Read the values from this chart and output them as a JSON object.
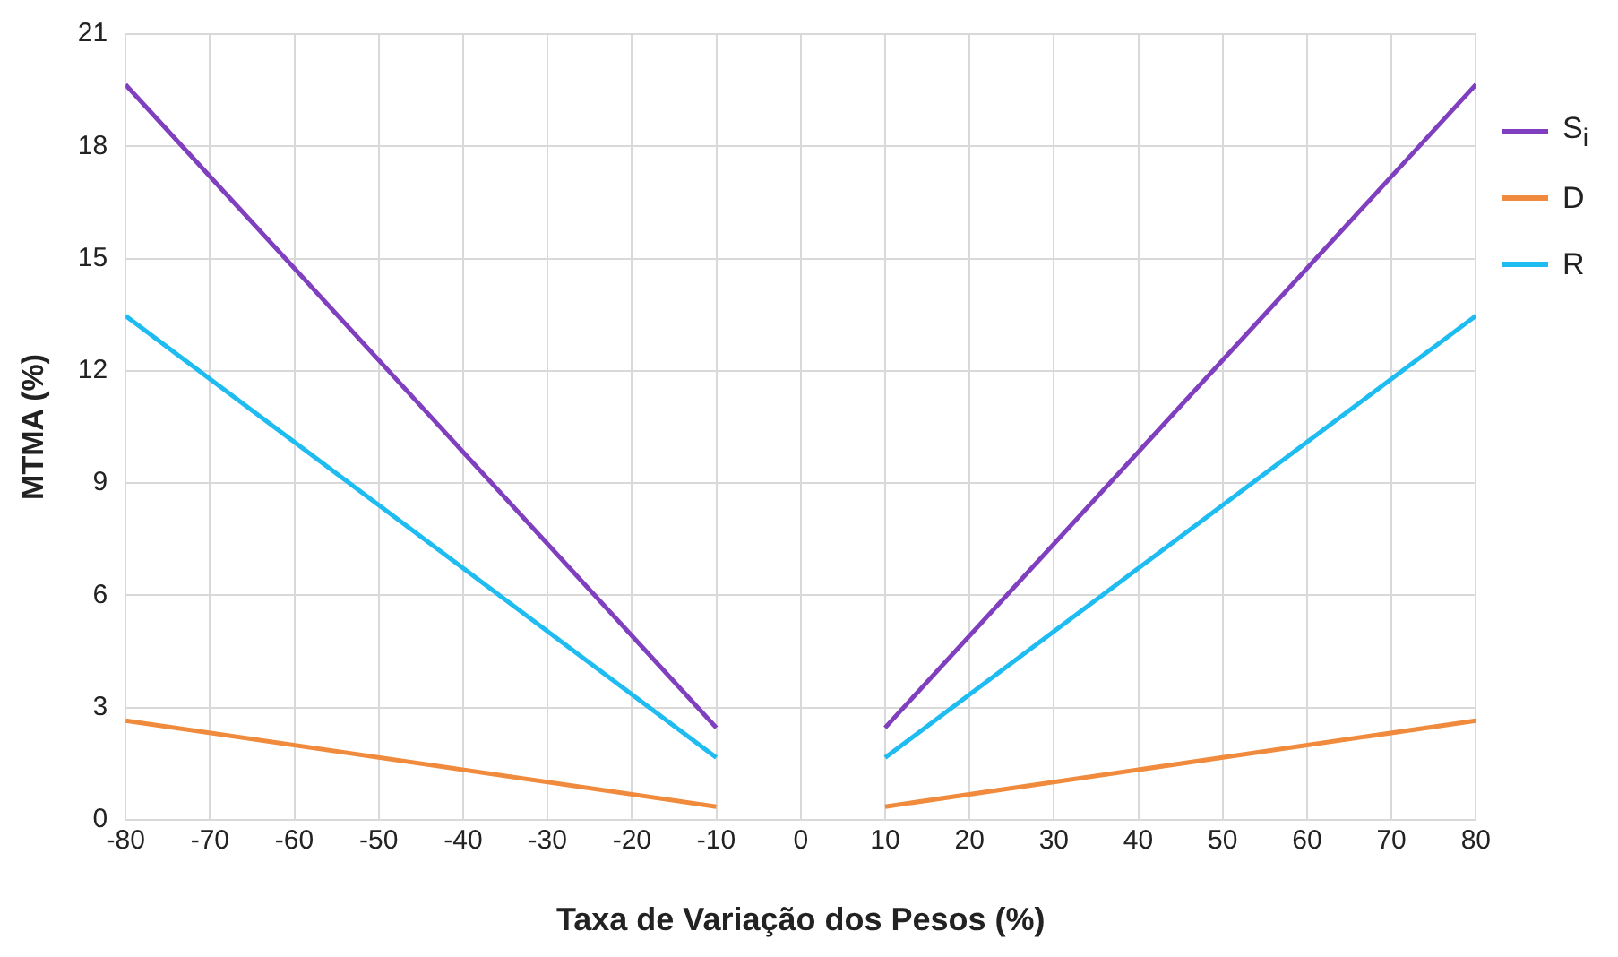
{
  "chart_data": {
    "type": "line",
    "xlabel": "Taxa de Variação dos Pesos (%)",
    "ylabel": "MTMA (%)",
    "x": [
      -80,
      -10,
      0,
      10,
      80
    ],
    "series": [
      {
        "name": "S$_{i}$",
        "color": "#7f3fbf",
        "values": [
          19.65,
          2.46,
          null,
          2.46,
          19.65
        ]
      },
      {
        "name": "D",
        "color": "#f08a3c",
        "values": [
          2.65,
          0.35,
          null,
          0.35,
          2.65
        ]
      },
      {
        "name": "R",
        "color": "#1fbcf2",
        "values": [
          13.47,
          1.66,
          null,
          1.66,
          13.47
        ]
      }
    ],
    "xlim": [
      -80,
      80
    ],
    "xticks": [
      -80,
      -70,
      -60,
      -50,
      -40,
      -30,
      -20,
      -10,
      0,
      10,
      20,
      30,
      40,
      50,
      60,
      70,
      80
    ],
    "ylim": [
      0,
      21
    ],
    "yticks": [
      0,
      3,
      6,
      9,
      12,
      15,
      18,
      21
    ],
    "grid": true,
    "legend": "right",
    "marker": "none",
    "line_style": "solid"
  }
}
